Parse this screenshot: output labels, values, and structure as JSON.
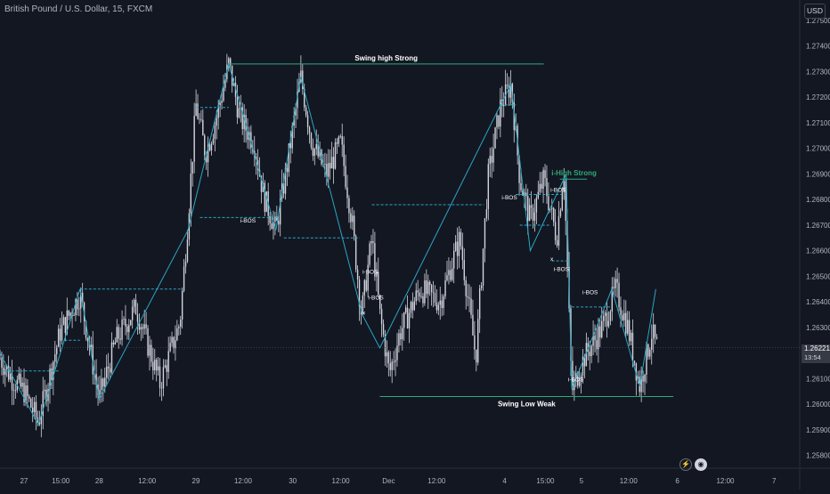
{
  "header": {
    "symbol_title": "British Pound / U.S. Dollar, 15, FXCM",
    "currency_button": "USD"
  },
  "price_tag": {
    "price": "1.26221",
    "countdown": "13:54"
  },
  "icons": {
    "replay": "lightning-icon",
    "snapshot": "camera-icon"
  },
  "colors": {
    "background": "#131722",
    "candle": "#d1d4dc",
    "zigzag": "#2aa6c4",
    "bos_dashed": "#2aa6c4",
    "swing_line": "#2fa87a",
    "strong_label": "#2fa87a",
    "grid": "#1e222d"
  },
  "chart_data": {
    "type": "candlestick",
    "symbol": "GBPUSD",
    "timeframe": "15",
    "ylim": [
      1.2575,
      1.2758
    ],
    "y_ticks": [
      1.258,
      1.259,
      1.26,
      1.261,
      1.262,
      1.263,
      1.264,
      1.265,
      1.266,
      1.267,
      1.268,
      1.269,
      1.27,
      1.271,
      1.272,
      1.273,
      1.274,
      1.275
    ],
    "y_tick_labels": [
      "1.25800",
      "1.25900",
      "1.26000",
      "1.26100",
      "1.26200",
      "1.26300",
      "1.26400",
      "1.26500",
      "1.26600",
      "1.26700",
      "1.26800",
      "1.26900",
      "1.27000",
      "1.27100",
      "1.27200",
      "1.27300",
      "1.27400",
      "1.27500"
    ],
    "x_ticks": [
      {
        "t": 0.03,
        "label": "27"
      },
      {
        "t": 0.076,
        "label": "15:00"
      },
      {
        "t": 0.124,
        "label": "28"
      },
      {
        "t": 0.184,
        "label": "12:00"
      },
      {
        "t": 0.245,
        "label": "29"
      },
      {
        "t": 0.304,
        "label": "12:00"
      },
      {
        "t": 0.366,
        "label": "30"
      },
      {
        "t": 0.426,
        "label": "12:00"
      },
      {
        "t": 0.486,
        "label": "Dec"
      },
      {
        "t": 0.546,
        "label": "12:00"
      },
      {
        "t": 0.631,
        "label": "4"
      },
      {
        "t": 0.682,
        "label": "15:00"
      },
      {
        "t": 0.727,
        "label": "5"
      },
      {
        "t": 0.786,
        "label": "12:00"
      },
      {
        "t": 0.847,
        "label": "6"
      },
      {
        "t": 0.907,
        "label": "12:00"
      },
      {
        "t": 0.968,
        "label": "7"
      }
    ],
    "price_path": [
      [
        0.0,
        1.2618
      ],
      [
        0.015,
        1.261
      ],
      [
        0.03,
        1.2605
      ],
      [
        0.048,
        1.2593
      ],
      [
        0.075,
        1.2628
      ],
      [
        0.1,
        1.2643
      ],
      [
        0.124,
        1.2602
      ],
      [
        0.145,
        1.2625
      ],
      [
        0.17,
        1.2638
      ],
      [
        0.2,
        1.2608
      ],
      [
        0.225,
        1.2632
      ],
      [
        0.235,
        1.2672
      ],
      [
        0.245,
        1.2717
      ],
      [
        0.257,
        1.2698
      ],
      [
        0.27,
        1.2711
      ],
      [
        0.286,
        1.2733
      ],
      [
        0.3,
        1.2712
      ],
      [
        0.318,
        1.2702
      ],
      [
        0.33,
        1.2681
      ],
      [
        0.345,
        1.2668
      ],
      [
        0.36,
        1.2695
      ],
      [
        0.376,
        1.2728
      ],
      [
        0.39,
        1.2702
      ],
      [
        0.408,
        1.269
      ],
      [
        0.426,
        1.2702
      ],
      [
        0.44,
        1.2672
      ],
      [
        0.452,
        1.2635
      ],
      [
        0.465,
        1.2665
      ],
      [
        0.475,
        1.2635
      ],
      [
        0.487,
        1.2612
      ],
      [
        0.5,
        1.2628
      ],
      [
        0.525,
        1.2645
      ],
      [
        0.55,
        1.264
      ],
      [
        0.575,
        1.2665
      ],
      [
        0.595,
        1.2618
      ],
      [
        0.61,
        1.2688
      ],
      [
        0.626,
        1.2717
      ],
      [
        0.639,
        1.2725
      ],
      [
        0.65,
        1.2688
      ],
      [
        0.663,
        1.2672
      ],
      [
        0.68,
        1.2688
      ],
      [
        0.696,
        1.2665
      ],
      [
        0.705,
        1.2692
      ],
      [
        0.715,
        1.2605
      ],
      [
        0.73,
        1.2618
      ],
      [
        0.753,
        1.263
      ],
      [
        0.77,
        1.2645
      ],
      [
        0.785,
        1.263
      ],
      [
        0.8,
        1.2607
      ],
      [
        0.815,
        1.2628
      ],
      [
        0.823,
        1.2621
      ]
    ],
    "zigzag": [
      [
        0.0,
        1.262
      ],
      [
        0.048,
        1.2592
      ],
      [
        0.1,
        1.2645
      ],
      [
        0.124,
        1.2602
      ],
      [
        0.235,
        1.2668
      ],
      [
        0.286,
        1.2733
      ],
      [
        0.345,
        1.2668
      ],
      [
        0.376,
        1.2728
      ],
      [
        0.453,
        1.2635
      ],
      [
        0.475,
        1.2622
      ],
      [
        0.626,
        1.2717
      ],
      [
        0.639,
        1.2725
      ],
      [
        0.663,
        1.266
      ],
      [
        0.708,
        1.269
      ],
      [
        0.715,
        1.2606
      ],
      [
        0.765,
        1.2645
      ],
      [
        0.8,
        1.2607
      ],
      [
        0.82,
        1.2645
      ]
    ],
    "bos_levels": [
      {
        "x1": 0.003,
        "x2": 0.075,
        "y": 1.2613
      },
      {
        "x1": 0.075,
        "x2": 0.1,
        "y": 1.2625
      },
      {
        "x1": 0.1,
        "x2": 0.227,
        "y": 1.2645
      },
      {
        "x1": 0.245,
        "x2": 0.286,
        "y": 1.2716
      },
      {
        "x1": 0.25,
        "x2": 0.35,
        "y": 1.2673
      },
      {
        "x1": 0.355,
        "x2": 0.45,
        "y": 1.2665
      },
      {
        "x1": 0.465,
        "x2": 0.605,
        "y": 1.2678
      },
      {
        "x1": 0.626,
        "x2": 0.645,
        "y": 1.2717
      },
      {
        "x1": 0.645,
        "x2": 0.703,
        "y": 1.2682
      },
      {
        "x1": 0.65,
        "x2": 0.688,
        "y": 1.267
      },
      {
        "x1": 0.69,
        "x2": 0.71,
        "y": 1.2656
      },
      {
        "x1": 0.715,
        "x2": 0.765,
        "y": 1.2638
      },
      {
        "x1": 0.715,
        "x2": 0.727,
        "y": 1.2612
      }
    ],
    "swing_lines": [
      {
        "x1": 0.286,
        "x2": 0.68,
        "y": 1.2733,
        "label": "Swing high Strong"
      },
      {
        "x1": 0.475,
        "x2": 0.842,
        "y": 1.2603,
        "label": "Swing Low Weak"
      },
      {
        "x1": 0.7,
        "x2": 0.734,
        "y": 1.2688,
        "label": "i-High Strong"
      }
    ],
    "annotations": [
      {
        "text": "i-BOS",
        "t": 0.31,
        "y": 1.2671
      },
      {
        "text": "i-BOS",
        "t": 0.463,
        "y": 1.2651
      },
      {
        "text": "i-BOS",
        "t": 0.47,
        "y": 1.2641
      },
      {
        "text": "x",
        "t": 0.455,
        "y": 1.2635
      },
      {
        "text": "i-BOS",
        "t": 0.637,
        "y": 1.268
      },
      {
        "text": "i-BOS",
        "t": 0.698,
        "y": 1.2683
      },
      {
        "text": "i-BOS",
        "t": 0.702,
        "y": 1.2652
      },
      {
        "text": "i-BOS",
        "t": 0.738,
        "y": 1.2643
      },
      {
        "text": "i-BOS",
        "t": 0.72,
        "y": 1.2609
      },
      {
        "text": "x",
        "t": 0.69,
        "y": 1.2656
      }
    ],
    "current_price": 1.26221,
    "grid": false
  }
}
